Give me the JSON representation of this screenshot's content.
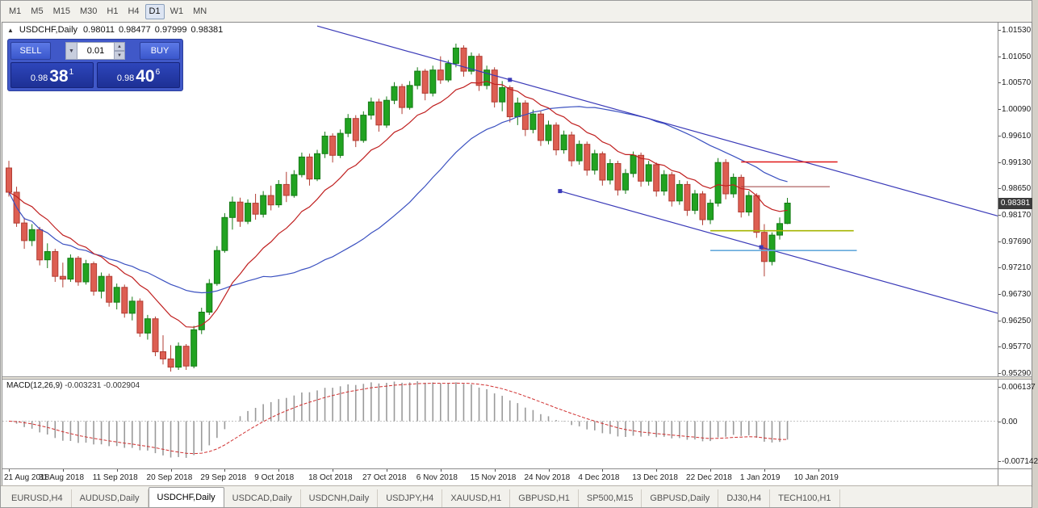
{
  "toolbar": {
    "timeframes": [
      "M1",
      "M5",
      "M15",
      "M30",
      "H1",
      "H4",
      "D1",
      "W1",
      "MN"
    ],
    "active": "D1"
  },
  "icons": {
    "collapse": "▲",
    "dropdown": "▼",
    "spin_up": "▲",
    "spin_down": "▼"
  },
  "chart_header": {
    "title": "USDCHF,Daily",
    "open": "0.98011",
    "high": "0.98477",
    "low": "0.97999",
    "close": "0.98381"
  },
  "one_click": {
    "sell_label": "SELL",
    "buy_label": "BUY",
    "volume": "0.01",
    "sell_price": {
      "prefix": "0.98",
      "big": "38",
      "sup": "1"
    },
    "buy_price": {
      "prefix": "0.98",
      "big": "40",
      "sup": "6"
    }
  },
  "price_scale": {
    "labels": [
      "1.01530",
      "1.01050",
      "1.00570",
      "1.00090",
      "0.99610",
      "0.99130",
      "0.98650",
      "0.98170",
      "0.97690",
      "0.97210",
      "0.96730",
      "0.96250",
      "0.95770",
      "0.95290"
    ],
    "current": "0.98381"
  },
  "macd_scale": {
    "labels": [
      "0.006137",
      "0.00",
      "-0.007142"
    ]
  },
  "tabs": {
    "items": [
      "EURUSD,H4",
      "AUDUSD,Daily",
      "USDCHF,Daily",
      "USDCAD,Daily",
      "USDCNH,Daily",
      "USDJPY,H4",
      "XAUUSD,H1",
      "GBPUSD,H1",
      "SP500,M15",
      "GBPUSD,Daily",
      "DJ30,H4",
      "TECH100,H1"
    ],
    "active": "USDCHF,Daily"
  },
  "colors": {
    "bull": "#21a321",
    "bull_border": "#157a15",
    "bear": "#dd5e52",
    "bear_border": "#b13d33",
    "panel_blue": "#4058c8",
    "badge": "#3c3c3c"
  },
  "chart_data": {
    "type": "candlestick",
    "symbol": "USDCHF",
    "period": "Daily",
    "y_min": 0.9529,
    "y_max": 1.0153,
    "y_tick": 0.0048,
    "x_labels": [
      "21 Aug 2018",
      "31 Aug 2018",
      "11 Sep 2018",
      "20 Sep 2018",
      "29 Sep 2018",
      "9 Oct 2018",
      "18 Oct 2018",
      "27 Oct 2018",
      "6 Nov 2018",
      "15 Nov 2018",
      "24 Nov 2018",
      "4 Dec 2018",
      "13 Dec 2018",
      "22 Dec 2018",
      "1 Jan 2019",
      "10 Jan 2019"
    ],
    "x_label_step": 7,
    "candles": [
      [
        0.9902,
        0.9915,
        0.985,
        0.9858
      ],
      [
        0.9858,
        0.9868,
        0.9795,
        0.9802
      ],
      [
        0.9802,
        0.9812,
        0.9755,
        0.977
      ],
      [
        0.977,
        0.98,
        0.976,
        0.979
      ],
      [
        0.979,
        0.9795,
        0.9725,
        0.9735
      ],
      [
        0.9735,
        0.9765,
        0.972,
        0.975
      ],
      [
        0.975,
        0.9755,
        0.9695,
        0.9705
      ],
      [
        0.9705,
        0.973,
        0.9685,
        0.97
      ],
      [
        0.97,
        0.9745,
        0.9695,
        0.9738
      ],
      [
        0.9738,
        0.9742,
        0.9688,
        0.9695
      ],
      [
        0.9695,
        0.9735,
        0.969,
        0.9728
      ],
      [
        0.9728,
        0.9732,
        0.967,
        0.9678
      ],
      [
        0.9678,
        0.9712,
        0.9665,
        0.9705
      ],
      [
        0.9705,
        0.971,
        0.965,
        0.9658
      ],
      [
        0.9658,
        0.9692,
        0.9645,
        0.9685
      ],
      [
        0.9685,
        0.969,
        0.963,
        0.9638
      ],
      [
        0.9638,
        0.9668,
        0.9625,
        0.966
      ],
      [
        0.966,
        0.9665,
        0.9595,
        0.9602
      ],
      [
        0.9602,
        0.9635,
        0.959,
        0.9628
      ],
      [
        0.9628,
        0.9632,
        0.956,
        0.9568
      ],
      [
        0.9568,
        0.9598,
        0.9545,
        0.9555
      ],
      [
        0.9555,
        0.958,
        0.9532,
        0.954
      ],
      [
        0.954,
        0.9585,
        0.9535,
        0.9578
      ],
      [
        0.9578,
        0.9582,
        0.9535,
        0.9542
      ],
      [
        0.9542,
        0.9615,
        0.9538,
        0.9608
      ],
      [
        0.9608,
        0.9648,
        0.96,
        0.964
      ],
      [
        0.964,
        0.97,
        0.9635,
        0.9692
      ],
      [
        0.9692,
        0.976,
        0.9688,
        0.9752
      ],
      [
        0.9752,
        0.982,
        0.9748,
        0.9812
      ],
      [
        0.9812,
        0.985,
        0.979,
        0.984
      ],
      [
        0.984,
        0.9848,
        0.9795,
        0.9805
      ],
      [
        0.9805,
        0.9845,
        0.98,
        0.9838
      ],
      [
        0.9838,
        0.9855,
        0.9808,
        0.9818
      ],
      [
        0.9818,
        0.986,
        0.9812,
        0.9852
      ],
      [
        0.9852,
        0.987,
        0.9825,
        0.9835
      ],
      [
        0.9835,
        0.988,
        0.983,
        0.9872
      ],
      [
        0.9872,
        0.9895,
        0.984,
        0.9852
      ],
      [
        0.9852,
        0.9898,
        0.9848,
        0.989
      ],
      [
        0.989,
        0.993,
        0.9885,
        0.9922
      ],
      [
        0.9922,
        0.9928,
        0.987,
        0.9882
      ],
      [
        0.9882,
        0.9935,
        0.9878,
        0.9928
      ],
      [
        0.9928,
        0.9968,
        0.992,
        0.996
      ],
      [
        0.996,
        0.9965,
        0.9912,
        0.9925
      ],
      [
        0.9925,
        0.9972,
        0.992,
        0.9965
      ],
      [
        0.9965,
        1.0,
        0.9958,
        0.9992
      ],
      [
        0.9992,
        0.9998,
        0.994,
        0.9952
      ],
      [
        0.9952,
        1.0005,
        0.9948,
        0.9998
      ],
      [
        0.9998,
        1.003,
        0.999,
        1.0022
      ],
      [
        1.0022,
        1.0028,
        0.9968,
        0.998
      ],
      [
        0.998,
        1.0032,
        0.9975,
        1.0025
      ],
      [
        1.0025,
        1.0058,
        1.0018,
        1.005
      ],
      [
        1.005,
        1.0055,
        1.0,
        1.0012
      ],
      [
        1.0012,
        1.006,
        1.0008,
        1.0052
      ],
      [
        1.0052,
        1.0085,
        1.0045,
        1.0078
      ],
      [
        1.0078,
        1.0082,
        1.0025,
        1.0038
      ],
      [
        1.0038,
        1.0088,
        1.0032,
        1.008
      ],
      [
        1.008,
        1.0105,
        1.0055,
        1.0062
      ],
      [
        1.0062,
        1.0098,
        1.0058,
        1.0092
      ],
      [
        1.0092,
        1.0128,
        1.0085,
        1.012
      ],
      [
        1.012,
        1.0125,
        1.0068,
        1.0078
      ],
      [
        1.0078,
        1.0112,
        1.0072,
        1.0105
      ],
      [
        1.0105,
        1.011,
        1.0042,
        1.0052
      ],
      [
        1.0052,
        1.0088,
        1.0045,
        1.008
      ],
      [
        1.008,
        1.0085,
        1.0012,
        1.0022
      ],
      [
        1.0022,
        1.006,
        1.0005,
        1.0048
      ],
      [
        1.0048,
        1.0052,
        0.9985,
        0.9995
      ],
      [
        0.9995,
        1.003,
        0.998,
        1.002
      ],
      [
        1.002,
        1.0025,
        0.996,
        0.9972
      ],
      [
        0.9972,
        1.0008,
        0.9965,
        1.0
      ],
      [
        1.0,
        1.0005,
        0.9942,
        0.9952
      ],
      [
        0.9952,
        0.9988,
        0.9945,
        0.998
      ],
      [
        0.998,
        0.9985,
        0.9925,
        0.9935
      ],
      [
        0.9935,
        0.997,
        0.9928,
        0.9962
      ],
      [
        0.9962,
        0.9968,
        0.9905,
        0.9915
      ],
      [
        0.9915,
        0.9952,
        0.9908,
        0.9945
      ],
      [
        0.9945,
        0.995,
        0.9888,
        0.9898
      ],
      [
        0.9898,
        0.9935,
        0.989,
        0.9928
      ],
      [
        0.9928,
        0.9932,
        0.987,
        0.988
      ],
      [
        0.988,
        0.9918,
        0.9872,
        0.991
      ],
      [
        0.991,
        0.9915,
        0.9852,
        0.9862
      ],
      [
        0.9862,
        0.99,
        0.9855,
        0.9892
      ],
      [
        0.9892,
        0.9932,
        0.9885,
        0.9925
      ],
      [
        0.9925,
        0.993,
        0.9868,
        0.9878
      ],
      [
        0.9878,
        0.9915,
        0.987,
        0.9908
      ],
      [
        0.9908,
        0.9912,
        0.985,
        0.986
      ],
      [
        0.986,
        0.9898,
        0.9852,
        0.989
      ],
      [
        0.989,
        0.9895,
        0.9832,
        0.9842
      ],
      [
        0.9842,
        0.988,
        0.9835,
        0.9872
      ],
      [
        0.9872,
        0.9878,
        0.9815,
        0.9825
      ],
      [
        0.9825,
        0.9862,
        0.9818,
        0.9855
      ],
      [
        0.9855,
        0.986,
        0.9798,
        0.9808
      ],
      [
        0.9808,
        0.9845,
        0.98,
        0.9838
      ],
      [
        0.9838,
        0.992,
        0.9832,
        0.9912
      ],
      [
        0.9912,
        0.9918,
        0.9845,
        0.9855
      ],
      [
        0.9855,
        0.9892,
        0.9848,
        0.9885
      ],
      [
        0.9885,
        0.989,
        0.9812,
        0.9822
      ],
      [
        0.9822,
        0.986,
        0.9815,
        0.9852
      ],
      [
        0.9852,
        0.9856,
        0.9775,
        0.9785
      ],
      [
        0.9785,
        0.98,
        0.9705,
        0.9732
      ],
      [
        0.9732,
        0.9785,
        0.9725,
        0.978
      ],
      [
        0.978,
        0.9812,
        0.9772,
        0.9801
      ],
      [
        0.98011,
        0.98477,
        0.97999,
        0.98381
      ]
    ],
    "overlays": {
      "ma_fast": {
        "type": "ema",
        "period": 13,
        "color": "#c02020"
      },
      "ma_slow": {
        "type": "sma",
        "period": 34,
        "color": "#3a50c0"
      }
    },
    "trendlines": [
      {
        "t1": 40,
        "p1": 1.016,
        "t2": 130,
        "p2": 0.98081,
        "color": "#3a3ab8"
      },
      {
        "t1": 71.5,
        "p1": 0.986,
        "t2": 130,
        "p2": 0.96313,
        "color": "#3a3ab8"
      }
    ],
    "handles": [
      {
        "t": 65,
        "p": 1.00622
      },
      {
        "t": 71.5,
        "p": 0.986
      },
      {
        "t": 97.6,
        "p": 0.9758
      }
    ],
    "hlines": [
      {
        "price": 0.9913,
        "t1": 95,
        "t2": 107.5,
        "color": "#e01818",
        "width": 1.6
      },
      {
        "price": 0.9868,
        "t1": 95,
        "t2": 106.5,
        "color": "#9c3c3c",
        "width": 1
      },
      {
        "price": 0.9788,
        "t1": 91,
        "t2": 109.6,
        "color": "#a6b400",
        "width": 1.6
      },
      {
        "price": 0.9752,
        "t1": 91,
        "t2": 110,
        "color": "#66aadc",
        "width": 1.6
      }
    ],
    "macd": {
      "label": "MACD(12,26,9)",
      "main_value": "-0.003231",
      "signal_value": "-0.002904",
      "fast": 12,
      "slow": 26,
      "signal": 9,
      "range_hint": [
        -0.007142,
        0.006137
      ],
      "histogram_color": "#9a9a9a",
      "signal_color": "#d03030"
    }
  }
}
